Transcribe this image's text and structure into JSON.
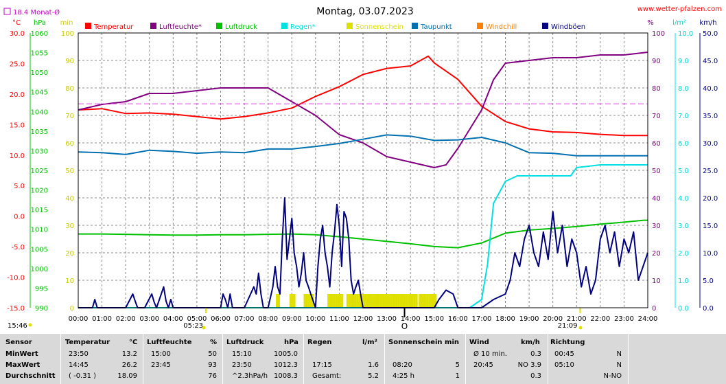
{
  "header": {
    "title": "Montag, 03.07.2023",
    "website": "www.wetter-pfalzen.com",
    "monthly_avg_label": "18.4 Monat-Ø",
    "sunrise": "05:23",
    "sunset": "21:09",
    "left_time": "15:46",
    "noon_marker": "O"
  },
  "chart_data": {
    "type": "line",
    "xlabel": "",
    "x_ticks": [
      "00:00",
      "01:00",
      "02:00",
      "03:00",
      "04:00",
      "05:00",
      "06:00",
      "07:00",
      "08:00",
      "09:00",
      "10:00",
      "11:00",
      "12:00",
      "13:00",
      "14:00",
      "15:00",
      "16:00",
      "17:00",
      "18:00",
      "19:00",
      "20:00",
      "21:00",
      "22:00",
      "23:00",
      "24:00"
    ],
    "axes": {
      "temperature": {
        "unit": "°C",
        "min": -15,
        "max": 30,
        "ticks": [
          "30.0",
          "25.0",
          "20.0",
          "15.0",
          "10.0",
          "5.0",
          "0.0",
          "-5.0",
          "-10.0",
          "-15.0"
        ],
        "color": "#ff0000"
      },
      "pressure": {
        "unit": "hPa",
        "min": 990,
        "max": 1060,
        "ticks": [
          "1060",
          "1055",
          "1050",
          "1045",
          "1040",
          "1035",
          "1030",
          "1025",
          "1020",
          "1015",
          "1010",
          "1005",
          "1000",
          "995",
          "990"
        ],
        "color": "#00c000"
      },
      "minutes": {
        "unit": "min",
        "min": 0,
        "max": 100,
        "ticks": [
          "100",
          "90",
          "80",
          "70",
          "60",
          "50",
          "40",
          "30",
          "20",
          "10",
          "0"
        ],
        "color": "#e0e000"
      },
      "humidity": {
        "unit": "%",
        "min": 0,
        "max": 100,
        "ticks": [
          "100",
          "90",
          "80",
          "70",
          "60",
          "50",
          "40",
          "30",
          "20",
          "10",
          "0"
        ],
        "color": "#800080"
      },
      "rain": {
        "unit": "l/m²",
        "min": 0,
        "max": 10,
        "ticks": [
          "10.0",
          "9.0",
          "8.0",
          "7.0",
          "6.0",
          "5.0",
          "4.0",
          "3.0",
          "2.0",
          "1.0",
          "0.0"
        ],
        "color": "#00e0e0"
      },
      "wind": {
        "unit": "km/h",
        "min": 0,
        "max": 50,
        "ticks": [
          "50.0",
          "45.0",
          "40.0",
          "35.0",
          "30.0",
          "25.0",
          "20.0",
          "15.0",
          "10.0",
          "5.0",
          "0.0"
        ],
        "color": "#000080"
      }
    },
    "legend": [
      {
        "name": "Temperatur",
        "color": "#ff0000"
      },
      {
        "name": "Luftfeuchte*",
        "color": "#800080"
      },
      {
        "name": "Luftdruck",
        "color": "#00c000"
      },
      {
        "name": "Regen*",
        "color": "#00e0e0"
      },
      {
        "name": "Sonnenschein",
        "color": "#e0e000"
      },
      {
        "name": "Taupunkt",
        "color": "#0070b0"
      },
      {
        "name": "Windchill",
        "color": "#ff8000"
      },
      {
        "name": "Windböen",
        "color": "#000080"
      }
    ],
    "monthly_avg_temperature": 18.4,
    "series": [
      {
        "name": "Temperatur",
        "axis": "temperature",
        "color": "#ff0000",
        "x": [
          0,
          1,
          2,
          3,
          4,
          5,
          6,
          7,
          8,
          9,
          10,
          11,
          12,
          13,
          14,
          14.75,
          15,
          16,
          17,
          18,
          19,
          20,
          21,
          22,
          23,
          24
        ],
        "values": [
          17.4,
          17.6,
          16.8,
          16.9,
          16.7,
          16.3,
          15.9,
          16.3,
          16.9,
          17.7,
          19.6,
          21.2,
          23.2,
          24.2,
          24.6,
          26.2,
          25.1,
          22.4,
          18.0,
          15.5,
          14.3,
          13.8,
          13.7,
          13.4,
          13.2,
          13.2
        ]
      },
      {
        "name": "Luftfeuchte*",
        "axis": "humidity",
        "color": "#800080",
        "x": [
          0,
          1,
          2,
          3,
          4,
          5,
          6,
          7,
          8,
          9,
          10,
          11,
          12,
          13,
          14,
          15,
          15.5,
          16,
          17,
          17.5,
          18,
          19,
          20,
          21,
          22,
          23,
          24
        ],
        "values": [
          72,
          74,
          75,
          78,
          78,
          79,
          80,
          80,
          80,
          75,
          70,
          63,
          60,
          55,
          53,
          51,
          52,
          58,
          72,
          83,
          89,
          90,
          91,
          91,
          92,
          92,
          93
        ]
      },
      {
        "name": "Luftdruck",
        "axis": "pressure",
        "color": "#00c000",
        "x": [
          0,
          1,
          2,
          3,
          4,
          5,
          6,
          7,
          8,
          9,
          10,
          11,
          12,
          13,
          14,
          15,
          16,
          17,
          18,
          19,
          20,
          21,
          22,
          23,
          23.83,
          24
        ],
        "values": [
          1008.8,
          1008.8,
          1008.7,
          1008.6,
          1008.5,
          1008.5,
          1008.6,
          1008.6,
          1008.7,
          1008.8,
          1008.6,
          1008.1,
          1007.5,
          1006.9,
          1006.3,
          1005.6,
          1005.3,
          1006.5,
          1009.0,
          1009.8,
          1010.2,
          1010.7,
          1011.3,
          1011.8,
          1012.3,
          1012.3
        ]
      },
      {
        "name": "Regen*",
        "axis": "rain",
        "color": "#00e0e0",
        "x": [
          0,
          16.5,
          17.0,
          17.25,
          17.5,
          18.0,
          18.5,
          19.0,
          20.0,
          20.75,
          21.0,
          22.0,
          23.0,
          24.0
        ],
        "values": [
          0,
          0,
          0.3,
          1.6,
          3.8,
          4.6,
          4.8,
          4.8,
          4.8,
          4.8,
          5.1,
          5.2,
          5.2,
          5.2
        ]
      },
      {
        "name": "Taupunkt",
        "axis": "temperature",
        "color": "#0070b0",
        "x": [
          0,
          1,
          2,
          3,
          4,
          5,
          6,
          7,
          8,
          9,
          10,
          11,
          12,
          13,
          14,
          15,
          16,
          17,
          18,
          19,
          20,
          21,
          22,
          23,
          24
        ],
        "values": [
          10.5,
          10.4,
          10.1,
          10.8,
          10.6,
          10.3,
          10.5,
          10.4,
          11.0,
          11.0,
          11.4,
          11.9,
          12.6,
          13.3,
          13.1,
          12.4,
          12.5,
          12.9,
          12.0,
          10.4,
          10.3,
          9.9,
          9.9,
          9.9,
          9.9
        ]
      },
      {
        "name": "Windböen",
        "axis": "wind",
        "color": "#000080",
        "x": [
          0,
          0.6,
          0.7,
          0.8,
          1,
          2,
          2.3,
          2.4,
          2.5,
          2.6,
          2.8,
          3.1,
          3.2,
          3.3,
          3.5,
          3.6,
          3.7,
          3.8,
          3.9,
          4.0,
          4.5,
          5,
          6,
          6.1,
          6.2,
          6.3,
          6.4,
          6.5,
          7,
          7.4,
          7.5,
          7.6,
          7.7,
          7.8,
          8,
          8.2,
          8.3,
          8.4,
          8.5,
          8.6,
          8.7,
          8.8,
          8.9,
          9.0,
          9.1,
          9.2,
          9.3,
          9.4,
          9.5,
          9.6,
          9.7,
          9.8,
          10.0,
          10.1,
          10.2,
          10.3,
          10.4,
          10.5,
          10.6,
          10.7,
          10.8,
          10.9,
          11.0,
          11.1,
          11.2,
          11.3,
          11.4,
          11.5,
          11.6,
          11.7,
          11.8,
          11.9,
          12.0,
          12.5,
          13,
          14,
          15,
          15.2,
          15.5,
          15.8,
          16.0,
          16.5,
          17.0,
          17.5,
          18.0,
          18.2,
          18.4,
          18.6,
          18.8,
          19.0,
          19.2,
          19.4,
          19.6,
          19.8,
          20.0,
          20.2,
          20.4,
          20.6,
          20.8,
          21.0,
          21.2,
          21.4,
          21.6,
          21.8,
          22.0,
          22.2,
          22.4,
          22.6,
          22.8,
          23.0,
          23.2,
          23.4,
          23.6,
          23.8,
          24.0
        ],
        "values": [
          0,
          0,
          1.5,
          0,
          0,
          0,
          2.5,
          1.2,
          0,
          0,
          0,
          2.5,
          1.0,
          0,
          2.5,
          3.8,
          1.2,
          0,
          1.5,
          0,
          0,
          0,
          0,
          2.5,
          1.5,
          0,
          2.5,
          0,
          0,
          3.8,
          2.5,
          6.3,
          2.5,
          0,
          0,
          3.8,
          7.5,
          3.8,
          2.5,
          12.5,
          20,
          8.8,
          12.5,
          16.3,
          10,
          7.5,
          3.8,
          6.3,
          10.0,
          5.0,
          3.8,
          2.5,
          0,
          7.5,
          12.5,
          15,
          10,
          7.5,
          3.8,
          10,
          13.8,
          18.8,
          15,
          7.5,
          17.5,
          16.3,
          12.5,
          5.0,
          2.5,
          3.8,
          5.0,
          2.5,
          0,
          0,
          0,
          0,
          0,
          1.5,
          3.2,
          2.5,
          0,
          0,
          0,
          1.5,
          2.5,
          5.0,
          10,
          7.5,
          12.5,
          15,
          10,
          7.5,
          13.8,
          8.8,
          17.5,
          10,
          15,
          7.5,
          12.5,
          10,
          3.8,
          7.5,
          2.5,
          5.0,
          12.5,
          15,
          10,
          13.8,
          7.5,
          12.5,
          10,
          13.8,
          5.0,
          7.5,
          10
        ]
      }
    ],
    "sunshine_minutes": {
      "axis": "minutes",
      "color": "#e0e000",
      "intervals": [
        [
          8.33,
          8.42
        ],
        [
          8.9,
          9.15
        ],
        [
          9.5,
          9.9
        ],
        [
          10.5,
          11.15
        ],
        [
          11.3,
          14.3
        ],
        [
          14.35,
          15.1
        ]
      ],
      "level": 5
    }
  },
  "table": {
    "headers": {
      "sensor": "Sensor",
      "temp": "Temperatur",
      "temp_unit": "°C",
      "hum": "Luftfeuchte",
      "hum_unit": "%",
      "press": "Luftdruck",
      "press_unit": "hPa",
      "rain": "Regen",
      "rain_unit": "l/m²",
      "sun": "Sonnenschein min",
      "wind": "Wind",
      "wind_unit": "km/h",
      "dir": "Richtung"
    },
    "rows": [
      {
        "label": "MinWert",
        "temp_time": "23:50",
        "temp_val": "13.2",
        "hum_time": "15:00",
        "hum_val": "50",
        "press_time": "15:10",
        "press_val": "1005.0",
        "rain_time": "",
        "rain_val": "",
        "sun_time": "",
        "sun_val": "",
        "wind_time": "Ø 10 min.",
        "wind_val": "0.3",
        "dir_time": "00:45",
        "dir_val": "N"
      },
      {
        "label": "MaxWert",
        "temp_time": "14:45",
        "temp_val": "26.2",
        "hum_time": "23:45",
        "hum_val": "93",
        "press_time": "23:50",
        "press_val": "1012.3",
        "rain_time": "17:15",
        "rain_val": "1.6",
        "sun_time": "08:20",
        "sun_val": "5",
        "wind_time": "20:45",
        "wind_val": "NO 3.9",
        "dir_time": "05:10",
        "dir_val": "N"
      },
      {
        "label": "Durchschnitt",
        "temp_time": "( -0.31 )",
        "temp_val": "18.09",
        "hum_time": "",
        "hum_val": "76",
        "press_time": "^2.3hPa/h",
        "press_val": "1008.3",
        "rain_time": "Gesamt:",
        "rain_val": "5.2",
        "sun_time": "4:25 h",
        "sun_val": "1",
        "wind_time": "",
        "wind_val": "0.3",
        "dir_time": "",
        "dir_val": "N-NO"
      }
    ]
  }
}
